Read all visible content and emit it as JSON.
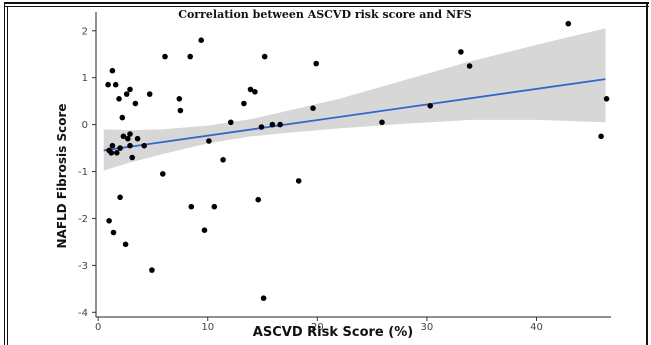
{
  "chart_data": {
    "type": "scatter",
    "title": "Correlation between ASCVD risk score and NFS",
    "xlabel": "ASCVD Risk Score (%)",
    "ylabel": "NAFLD Fibrosis Score",
    "xlim": [
      -0.2,
      46.8
    ],
    "ylim": [
      -4.1,
      2.4
    ],
    "x_ticks": [
      0,
      10,
      20,
      30,
      40
    ],
    "y_ticks": [
      -4,
      -3,
      -2,
      -1,
      0,
      1,
      2
    ],
    "x_tick_labels": [
      "0",
      "10",
      "20",
      "30",
      "40"
    ],
    "y_tick_labels": [
      "-4",
      "-3",
      "-2",
      "-1",
      "0",
      "1",
      "2"
    ],
    "grid": false,
    "colors": {
      "points": "#000000",
      "fit_line": "#3366cc",
      "band": "#d0d0d0"
    },
    "points": {
      "x": [
        0.9,
        1.3,
        1.6,
        1.9,
        1.0,
        1.3,
        2.0,
        2.2,
        2.6,
        2.9,
        3.1,
        3.4,
        2.7,
        2.9,
        3.6,
        4.2,
        4.7,
        1.2,
        1.7,
        2.3,
        2.9,
        2.0,
        1.4,
        1.0,
        2.5,
        4.9,
        6.1,
        5.9,
        8.4,
        9.4,
        7.4,
        7.5,
        8.5,
        10.1,
        11.4,
        12.1,
        13.3,
        13.9,
        14.3,
        14.6,
        15.2,
        15.9,
        16.6,
        9.7,
        10.6,
        14.9,
        18.3,
        19.6,
        19.9,
        25.9,
        30.3,
        33.1,
        33.9,
        42.9,
        45.9,
        46.4,
        15.1
      ],
      "y": [
        0.85,
        1.15,
        0.85,
        0.55,
        -0.55,
        -0.45,
        -0.5,
        0.15,
        0.65,
        0.75,
        -0.7,
        0.45,
        -0.3,
        -0.45,
        -0.3,
        -0.45,
        0.65,
        -0.6,
        -0.6,
        -0.25,
        -0.2,
        -1.55,
        -2.3,
        -2.05,
        -2.55,
        -3.1,
        1.45,
        -1.05,
        1.45,
        1.8,
        0.55,
        0.3,
        -1.75,
        -0.35,
        -0.75,
        0.05,
        0.45,
        0.75,
        0.7,
        -1.6,
        1.45,
        0.0,
        0.0,
        -2.25,
        -1.75,
        -0.05,
        -1.2,
        0.35,
        1.3,
        0.05,
        0.4,
        1.55,
        1.25,
        2.15,
        -0.25,
        0.55,
        -3.7
      ]
    },
    "fit": {
      "x": [
        0.5,
        46.3
      ],
      "y": [
        -0.55,
        0.97
      ]
    },
    "confidence_band": {
      "x": [
        0.5,
        3,
        6,
        10,
        14,
        17,
        22,
        28,
        34,
        40,
        46.3
      ],
      "upper": [
        -0.1,
        -0.12,
        -0.1,
        -0.02,
        0.12,
        0.28,
        0.55,
        0.95,
        1.35,
        1.7,
        2.05
      ],
      "lower": [
        -0.98,
        -0.8,
        -0.62,
        -0.4,
        -0.25,
        -0.18,
        -0.08,
        0.02,
        0.1,
        0.1,
        0.05
      ]
    }
  }
}
